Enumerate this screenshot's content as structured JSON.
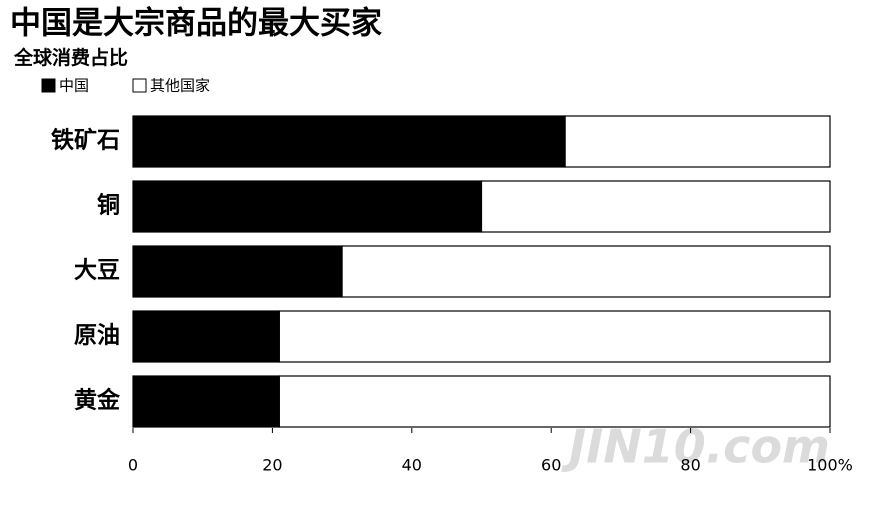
{
  "chart_data": {
    "type": "stacked_bar_horizontal",
    "title": "中国是大宗商品的最大买家",
    "subtitle": "全球消费占比",
    "categories": [
      "铁矿石",
      "铜",
      "大豆",
      "原油",
      "黄金"
    ],
    "series": [
      {
        "name": "中国",
        "color": "#000000",
        "values": [
          62,
          50,
          30,
          21,
          21
        ]
      },
      {
        "name": "其他国家",
        "color": "#ffffff",
        "values": [
          38,
          50,
          70,
          79,
          79
        ]
      }
    ],
    "xlim": [
      0,
      100
    ],
    "xticks": [
      0,
      20,
      40,
      60,
      80,
      {
        "value": 100,
        "label": "100%"
      }
    ],
    "legend": "top-left",
    "watermark": "JIN10.com"
  }
}
